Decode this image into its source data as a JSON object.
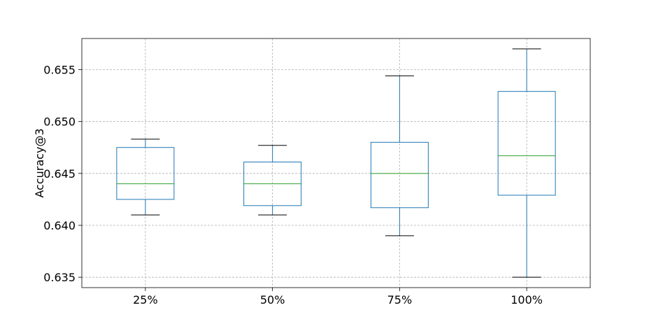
{
  "chart_data": {
    "type": "box",
    "title": "",
    "xlabel": "",
    "ylabel": "Accuracy@3",
    "ylim": [
      0.634,
      0.658
    ],
    "grid": true,
    "categories": [
      "25%",
      "50%",
      "75%",
      "100%"
    ],
    "yticks": [
      0.635,
      0.64,
      0.645,
      0.65,
      0.655
    ],
    "ytick_labels": [
      "0.635",
      "0.640",
      "0.645",
      "0.650",
      "0.655"
    ],
    "boxes": [
      {
        "category": "25%",
        "whisker_low": 0.641,
        "q1": 0.6425,
        "median": 0.644,
        "q3": 0.6475,
        "whisker_high": 0.6483
      },
      {
        "category": "50%",
        "whisker_low": 0.641,
        "q1": 0.6419,
        "median": 0.644,
        "q3": 0.6461,
        "whisker_high": 0.6477
      },
      {
        "category": "75%",
        "whisker_low": 0.639,
        "q1": 0.6417,
        "median": 0.645,
        "q3": 0.648,
        "whisker_high": 0.6544
      },
      {
        "category": "100%",
        "whisker_low": 0.635,
        "q1": 0.6429,
        "median": 0.6467,
        "q3": 0.6529,
        "whisker_high": 0.657
      }
    ],
    "colors": {
      "box": "#1f77b4",
      "median": "#2ca02c",
      "whisker_cap": "#000000",
      "grid": "#b0b0b0",
      "frame": "#000000"
    }
  }
}
